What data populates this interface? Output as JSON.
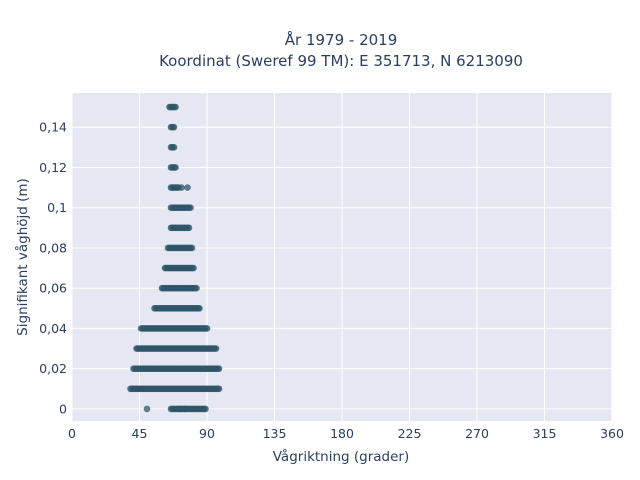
{
  "chart_data": {
    "type": "scatter",
    "title_lines": [
      "År 1979 - 2019",
      "Koordinat (Sweref 99 TM): E 351713, N 6213090"
    ],
    "xlabel": "Vågriktning (grader)",
    "ylabel": "Signifikant våghöjd (m)",
    "xlim": [
      0,
      360
    ],
    "ylim": [
      -0.006,
      0.157
    ],
    "x_ticks": [
      0,
      45,
      90,
      135,
      180,
      225,
      270,
      315,
      360
    ],
    "y_ticks": [
      0,
      0.02,
      0.04,
      0.06,
      0.08,
      0.1,
      0.12,
      0.14
    ],
    "y_tick_labels": [
      "0",
      "0,02",
      "0,04",
      "0,06",
      "0,08",
      "0,1",
      "0,12",
      "0,14"
    ],
    "grid": true,
    "marker_color": "#2f5569",
    "plot_background": "#e5e8f2",
    "bands": [
      {
        "y": 0.0,
        "x_min": 66,
        "x_max": 89,
        "outliers": [
          50,
          72,
          75
        ]
      },
      {
        "y": 0.01,
        "x_min": 39,
        "x_max": 98,
        "outliers": []
      },
      {
        "y": 0.02,
        "x_min": 41,
        "x_max": 98,
        "outliers": []
      },
      {
        "y": 0.03,
        "x_min": 43,
        "x_max": 96,
        "outliers": []
      },
      {
        "y": 0.04,
        "x_min": 47,
        "x_max": 90,
        "outliers": [
          46
        ]
      },
      {
        "y": 0.05,
        "x_min": 55,
        "x_max": 85,
        "outliers": []
      },
      {
        "y": 0.06,
        "x_min": 60,
        "x_max": 83,
        "outliers": []
      },
      {
        "y": 0.07,
        "x_min": 62,
        "x_max": 81,
        "outliers": []
      },
      {
        "y": 0.08,
        "x_min": 64,
        "x_max": 80,
        "outliers": []
      },
      {
        "y": 0.09,
        "x_min": 66,
        "x_max": 78,
        "outliers": []
      },
      {
        "y": 0.1,
        "x_min": 66,
        "x_max": 79,
        "outliers": []
      },
      {
        "y": 0.11,
        "x_min": 66,
        "x_max": 71,
        "outliers": [
          73,
          77
        ]
      },
      {
        "y": 0.12,
        "x_min": 66,
        "x_max": 69,
        "outliers": []
      },
      {
        "y": 0.13,
        "x_min": 66,
        "x_max": 68,
        "outliers": []
      },
      {
        "y": 0.14,
        "x_min": 66,
        "x_max": 68,
        "outliers": []
      },
      {
        "y": 0.15,
        "x_min": 65,
        "x_max": 69,
        "outliers": []
      }
    ]
  }
}
